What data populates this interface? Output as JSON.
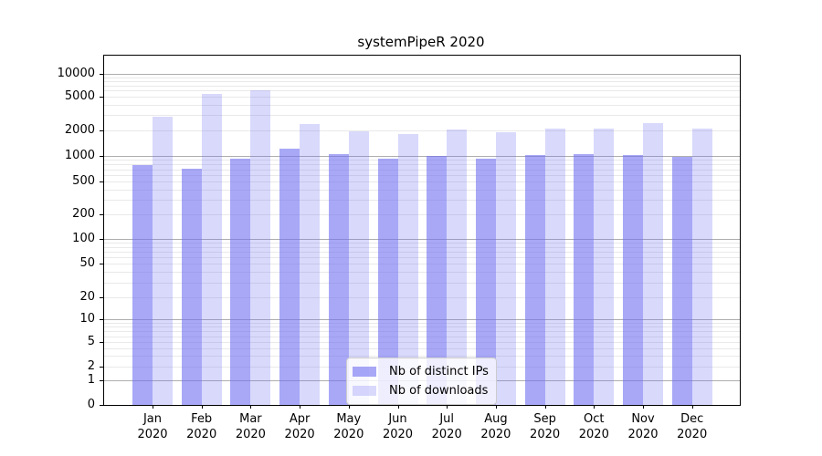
{
  "title": "systemPipeR 2020",
  "chart_data": {
    "type": "bar",
    "title": "systemPipeR 2020",
    "categories": [
      "Jan 2020",
      "Feb 2020",
      "Mar 2020",
      "Apr 2020",
      "May 2020",
      "Jun 2020",
      "Jul 2020",
      "Aug 2020",
      "Sep 2020",
      "Oct 2020",
      "Nov 2020",
      "Dec 2020"
    ],
    "series": [
      {
        "name": "Nb of distinct IPs",
        "color": "#6e6ef2",
        "fill_alpha": 0.6,
        "values": [
          790,
          710,
          930,
          1230,
          1060,
          940,
          1000,
          920,
          1020,
          1060,
          1020,
          980
        ]
      },
      {
        "name": "Nb of downloads",
        "color": "#6e6ef2",
        "fill_alpha": 0.26,
        "values": [
          2850,
          5300,
          6000,
          2350,
          1920,
          1810,
          2050,
          1890,
          2100,
          2100,
          2400,
          2100
        ]
      }
    ],
    "yscale": "symlog",
    "ytick_labels": [
      "0",
      "1",
      "2",
      "5",
      "10",
      "20",
      "50",
      "100",
      "200",
      "500",
      "1000",
      "2000",
      "5000",
      "10000"
    ],
    "ytick_values": [
      0,
      1,
      2,
      5,
      10,
      20,
      50,
      100,
      200,
      500,
      1000,
      2000,
      5000,
      10000
    ],
    "ylim": [
      0,
      17000
    ],
    "xlabel": "",
    "ylabel": "",
    "grid": "horizontal major and minor",
    "legend_position": "lower center"
  }
}
